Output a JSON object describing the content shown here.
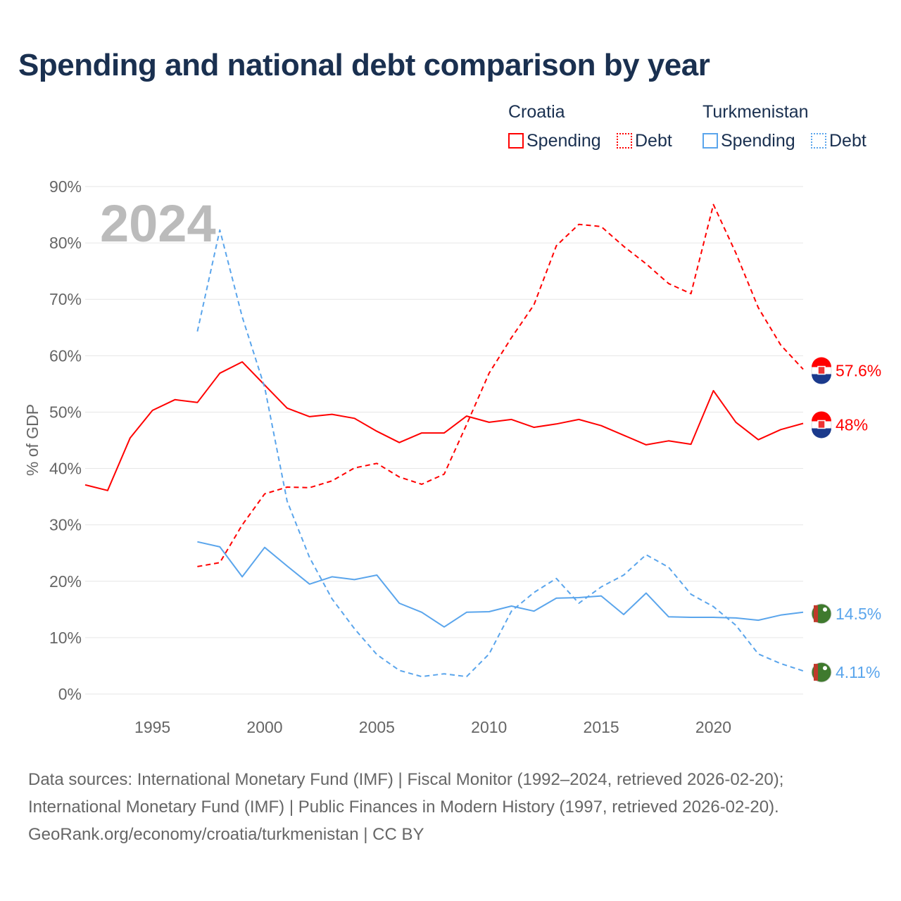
{
  "title": "Spending and national debt comparison by year",
  "legend": {
    "groups": [
      {
        "name": "Croatia",
        "color": "#ff0000",
        "items": [
          "Spending",
          "Debt"
        ]
      },
      {
        "name": "Turkmenistan",
        "color": "#5aa5ec",
        "items": [
          "Spending",
          "Debt"
        ]
      }
    ]
  },
  "chart_data": {
    "type": "line",
    "title": "Spending and national debt comparison by year",
    "year_label": "2024",
    "xlabel": "",
    "ylabel": "% of GDP",
    "xlim": [
      1992,
      2024
    ],
    "ylim": [
      0,
      90
    ],
    "xticks": [
      1995,
      2000,
      2005,
      2010,
      2015,
      2020
    ],
    "yticks": [
      0,
      10,
      20,
      30,
      40,
      50,
      60,
      70,
      80,
      90
    ],
    "ytick_labels": [
      "0%",
      "10%",
      "20%",
      "30%",
      "40%",
      "50%",
      "60%",
      "70%",
      "80%",
      "90%"
    ],
    "grid": true,
    "series": [
      {
        "name": "Croatia Spending",
        "color": "#ff0000",
        "dash": false,
        "start": 1992,
        "end_label": "48%",
        "values": [
          37.1,
          36.1,
          45.4,
          50.3,
          52.2,
          51.7,
          56.9,
          58.9,
          54.8,
          50.7,
          49.2,
          49.6,
          48.9,
          46.6,
          44.6,
          46.3,
          46.3,
          49.3,
          48.2,
          48.7,
          47.3,
          47.9,
          48.7,
          47.6,
          45.9,
          44.2,
          44.9,
          44.3,
          53.8,
          48.2,
          45.1,
          46.9,
          48.0
        ]
      },
      {
        "name": "Croatia Debt",
        "color": "#ff0000",
        "dash": true,
        "start": 1997,
        "end_label": "57.6%",
        "values": [
          22.6,
          23.3,
          30.0,
          35.5,
          36.7,
          36.6,
          37.8,
          40.1,
          40.9,
          38.5,
          37.2,
          39.0,
          47.8,
          56.9,
          63.2,
          69.0,
          79.5,
          83.3,
          82.9,
          79.4,
          76.3,
          72.8,
          71.0,
          86.8,
          78.2,
          68.5,
          61.9,
          57.6
        ]
      },
      {
        "name": "Turkmenistan Spending",
        "color": "#5aa5ec",
        "dash": false,
        "start": 1997,
        "end_label": "14.5%",
        "values": [
          27.0,
          26.1,
          20.8,
          26.0,
          22.7,
          19.5,
          20.8,
          20.3,
          21.1,
          16.1,
          14.5,
          11.9,
          14.5,
          14.6,
          15.6,
          14.7,
          17.0,
          17.1,
          17.4,
          14.1,
          17.9,
          13.7,
          13.6,
          13.6,
          13.5,
          13.1,
          14.0,
          14.5
        ]
      },
      {
        "name": "Turkmenistan Debt",
        "color": "#5aa5ec",
        "dash": true,
        "start": 1997,
        "end_label": "4.11%",
        "values": [
          64.3,
          82.3,
          66.9,
          54.4,
          34.2,
          24.2,
          16.9,
          11.6,
          7.0,
          4.2,
          3.1,
          3.6,
          3.1,
          7.1,
          14.7,
          18.0,
          20.5,
          16.1,
          19.0,
          21.1,
          24.7,
          22.5,
          17.7,
          15.5,
          12.2,
          7.1,
          5.4,
          4.11
        ]
      }
    ]
  },
  "footer": [
    "Data sources: International Monetary Fund (IMF) | Fiscal Monitor (1992–2024, retrieved 2026-02-20);",
    "International Monetary Fund (IMF) | Public Finances in Modern History (1997, retrieved 2026-02-20).",
    "GeoRank.org/economy/croatia/turkmenistan | CC BY"
  ]
}
